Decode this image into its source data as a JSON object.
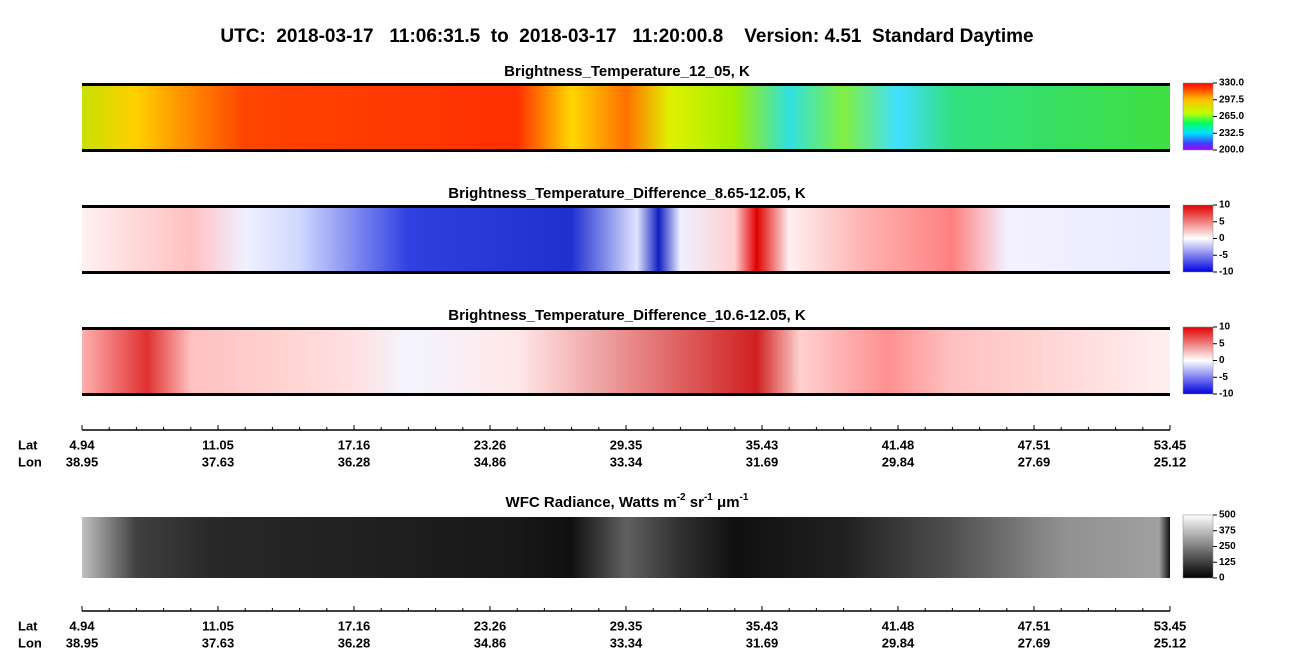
{
  "header": {
    "title": "UTC:  2018-03-17   11:06:31.5  to  2018-03-17   11:20:00.8    Version: 4.51  Standard Daytime"
  },
  "panels": [
    {
      "title_parts": [
        "Brightness_Temperature_12_05, K"
      ],
      "colorbar": [
        "330.0",
        "297.5",
        "265.0",
        "232.5",
        "200.0"
      ]
    },
    {
      "title_parts": [
        "Brightness_Temperature_Difference_8.65-12.05, K"
      ],
      "colorbar": [
        "10",
        "5",
        "0",
        "-5",
        "-10"
      ]
    },
    {
      "title_parts": [
        "Brightness_Temperature_Difference_10.6-12.05, K"
      ],
      "colorbar": [
        "10",
        "5",
        "0",
        "-5",
        "-10"
      ]
    },
    {
      "title_parts": [
        "WFC Radiance, Watts m",
        "-2",
        " sr",
        "-1",
        " μm",
        "-1"
      ],
      "colorbar": [
        "500",
        "375",
        "250",
        "125",
        "0"
      ]
    }
  ],
  "axes": [
    {
      "row_labels": [
        "Lat",
        "Lon"
      ],
      "lat": [
        "4.94",
        "11.05",
        "17.16",
        "23.26",
        "29.35",
        "35.43",
        "41.48",
        "47.51",
        "53.45"
      ],
      "lon": [
        "38.95",
        "37.63",
        "36.28",
        "34.86",
        "33.34",
        "31.69",
        "29.84",
        "27.69",
        "25.12"
      ]
    },
    {
      "row_labels": [
        "Lat",
        "Lon"
      ],
      "lat": [
        "4.94",
        "11.05",
        "17.16",
        "23.26",
        "29.35",
        "35.43",
        "41.48",
        "47.51",
        "53.45"
      ],
      "lon": [
        "38.95",
        "37.63",
        "36.28",
        "34.86",
        "33.34",
        "31.69",
        "29.84",
        "27.69",
        "25.12"
      ]
    }
  ]
}
